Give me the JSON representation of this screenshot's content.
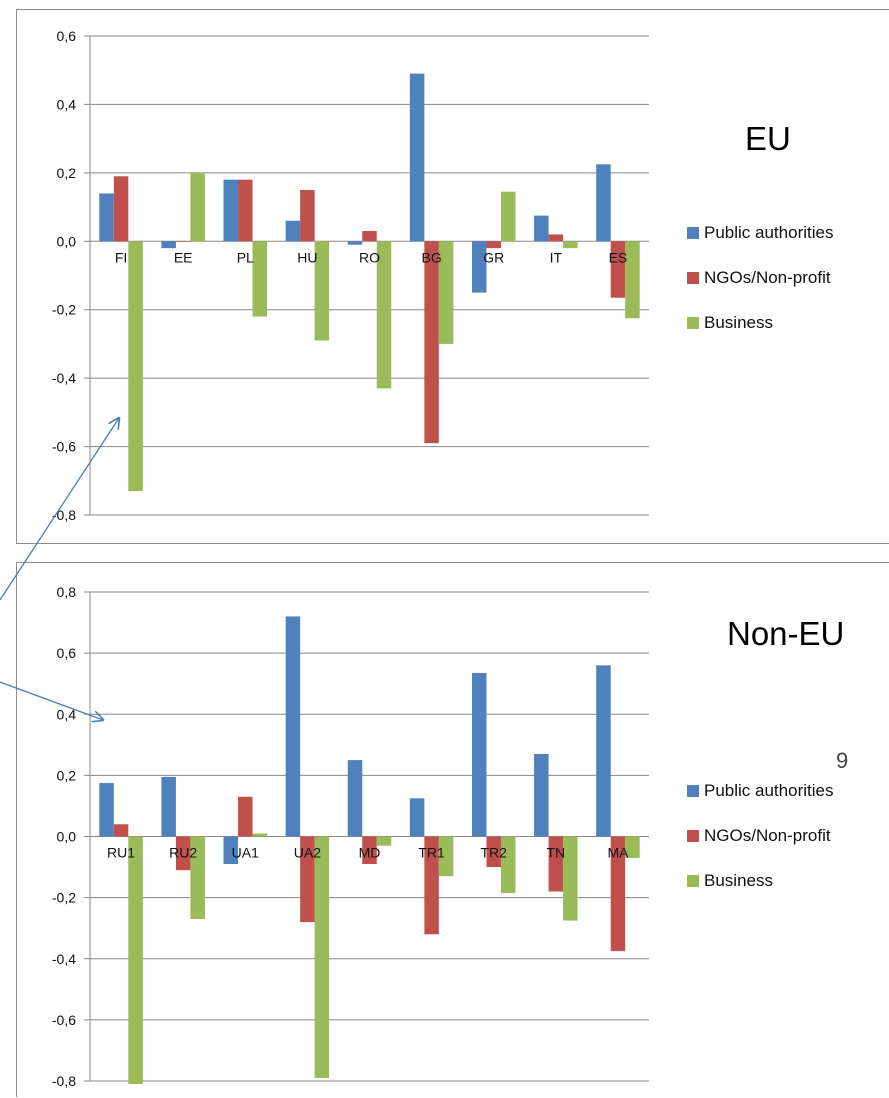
{
  "colors": {
    "public_authorities": "#4f81bd",
    "ngos": "#c0504d",
    "business": "#9bbb59",
    "gridline": "#878787",
    "arrow": "#4a7ebb"
  },
  "page_number": "9",
  "chart_data": [
    {
      "type": "bar",
      "region_label": "EU",
      "categories": [
        "FI",
        "EE",
        "PL",
        "HU",
        "RO",
        "BG",
        "GR",
        "IT",
        "ES"
      ],
      "series": [
        {
          "name": "Public authorities",
          "values": [
            0.14,
            -0.02,
            0.18,
            0.06,
            -0.01,
            0.49,
            -0.15,
            0.075,
            0.225
          ]
        },
        {
          "name": "NGOs/Non-profit",
          "values": [
            0.19,
            0.0,
            0.18,
            0.15,
            0.03,
            -0.59,
            -0.02,
            0.02,
            -0.165
          ]
        },
        {
          "name": "Business",
          "values": [
            -0.73,
            0.2,
            -0.22,
            -0.29,
            -0.43,
            -0.3,
            0.145,
            -0.02,
            -0.225
          ]
        }
      ],
      "ylim": [
        -0.8,
        0.6
      ],
      "yticks": [
        0.6,
        0.4,
        0.2,
        0.0,
        -0.2,
        -0.4,
        -0.6,
        -0.8
      ],
      "ytick_labels": [
        "0,6",
        "0,4",
        "0,2",
        "0,0",
        "-0,2",
        "-0,4",
        "-0,6",
        "-0,8"
      ],
      "grid": true,
      "legend": "right"
    },
    {
      "type": "bar",
      "region_label": "Non-EU",
      "categories": [
        "RU1",
        "RU2",
        "UA1",
        "UA2",
        "MD",
        "TR1",
        "TR2",
        "TN",
        "MA"
      ],
      "series": [
        {
          "name": "Public authorities",
          "values": [
            0.175,
            0.195,
            -0.09,
            0.72,
            0.25,
            0.125,
            0.535,
            0.27,
            0.56
          ]
        },
        {
          "name": "NGOs/Non-profit",
          "values": [
            0.04,
            -0.11,
            0.13,
            -0.28,
            -0.09,
            -0.32,
            -0.1,
            -0.18,
            -0.375
          ]
        },
        {
          "name": "Business",
          "values": [
            -0.81,
            -0.27,
            0.01,
            -0.79,
            -0.03,
            -0.13,
            -0.185,
            -0.275,
            -0.07
          ]
        }
      ],
      "ylim": [
        -0.8,
        0.8
      ],
      "yticks": [
        0.8,
        0.6,
        0.4,
        0.2,
        0.0,
        -0.2,
        -0.4,
        -0.6,
        -0.8
      ],
      "ytick_labels": [
        "0,8",
        "0,6",
        "0,4",
        "0,2",
        "0,0",
        "-0,2",
        "-0,4",
        "-0,6",
        "-0,8"
      ],
      "grid": true,
      "legend": "right"
    }
  ]
}
